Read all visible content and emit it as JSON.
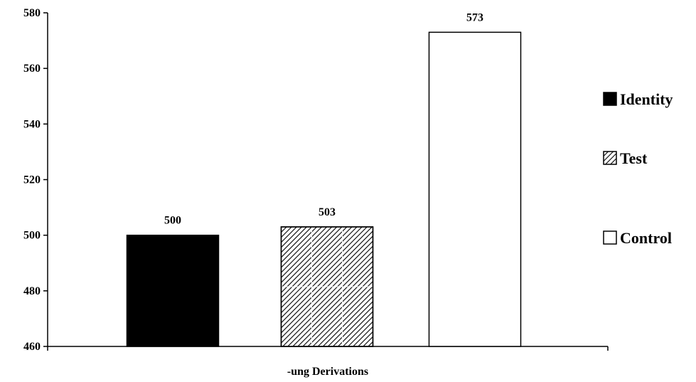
{
  "chart_data": {
    "type": "bar",
    "categories": [
      "-ung Derivations"
    ],
    "series": [
      {
        "name": "Identity",
        "values": [
          500
        ],
        "color": "#000000",
        "pattern": "solid"
      },
      {
        "name": "Test",
        "values": [
          503
        ],
        "color": "#000000",
        "pattern": "diagonal-hatch"
      },
      {
        "name": "Control",
        "values": [
          573
        ],
        "color": "#ffffff",
        "pattern": "none"
      }
    ],
    "yticks": [
      "460",
      "480",
      "500",
      "520",
      "540",
      "560",
      "580"
    ],
    "ylim": [
      460,
      580
    ],
    "xlabel": "-ung Derivations",
    "ylabel": "",
    "title": "",
    "grid": false,
    "legend_position": "right"
  }
}
